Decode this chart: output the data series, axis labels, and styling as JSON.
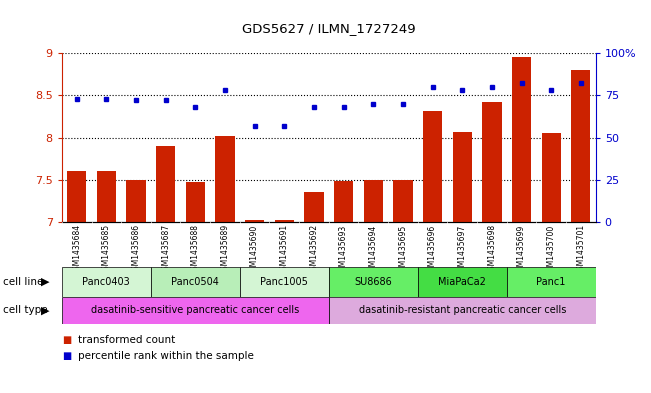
{
  "title": "GDS5627 / ILMN_1727249",
  "samples": [
    "GSM1435684",
    "GSM1435685",
    "GSM1435686",
    "GSM1435687",
    "GSM1435688",
    "GSM1435689",
    "GSM1435690",
    "GSM1435691",
    "GSM1435692",
    "GSM1435693",
    "GSM1435694",
    "GSM1435695",
    "GSM1435696",
    "GSM1435697",
    "GSM1435698",
    "GSM1435699",
    "GSM1435700",
    "GSM1435701"
  ],
  "bar_values": [
    7.6,
    7.6,
    7.5,
    7.9,
    7.47,
    8.02,
    7.03,
    7.03,
    7.35,
    7.48,
    7.5,
    7.5,
    8.32,
    8.07,
    8.42,
    8.95,
    8.05,
    8.8
  ],
  "dot_values": [
    73,
    73,
    72,
    72,
    68,
    78,
    57,
    57,
    68,
    68,
    70,
    70,
    80,
    78,
    80,
    82,
    78,
    82
  ],
  "bar_color": "#cc2200",
  "dot_color": "#0000cc",
  "ylim_left": [
    7.0,
    9.0
  ],
  "ylim_right": [
    0,
    100
  ],
  "yticks_left": [
    7.0,
    7.5,
    8.0,
    8.5,
    9.0
  ],
  "yticks_right": [
    0,
    25,
    50,
    75,
    100
  ],
  "cell_lines": [
    {
      "label": "Panc0403",
      "start": 0,
      "end": 2,
      "color": "#d4f5d4"
    },
    {
      "label": "Panc0504",
      "start": 3,
      "end": 5,
      "color": "#b8eeb8"
    },
    {
      "label": "Panc1005",
      "start": 6,
      "end": 8,
      "color": "#d4f5d4"
    },
    {
      "label": "SU8686",
      "start": 9,
      "end": 11,
      "color": "#66ee66"
    },
    {
      "label": "MiaPaCa2",
      "start": 12,
      "end": 14,
      "color": "#44dd44"
    },
    {
      "label": "Panc1",
      "start": 15,
      "end": 17,
      "color": "#66ee66"
    }
  ],
  "cell_types": [
    {
      "label": "dasatinib-sensitive pancreatic cancer cells",
      "start": 0,
      "end": 8,
      "color": "#ee66ee"
    },
    {
      "label": "dasatinib-resistant pancreatic cancer cells",
      "start": 9,
      "end": 17,
      "color": "#ddaadd"
    }
  ],
  "legend_bar_label": "transformed count",
  "legend_dot_label": "percentile rank within the sample",
  "cell_line_label": "cell line",
  "cell_type_label": "cell type",
  "tick_bg_color": "#c8c8c8",
  "border_color": "#000000"
}
